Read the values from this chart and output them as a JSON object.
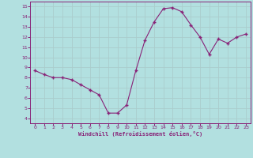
{
  "x": [
    0,
    1,
    2,
    3,
    4,
    5,
    6,
    7,
    8,
    9,
    10,
    11,
    12,
    13,
    14,
    15,
    16,
    17,
    18,
    19,
    20,
    21,
    22,
    23
  ],
  "y": [
    8.7,
    8.3,
    8.0,
    8.0,
    7.8,
    7.3,
    6.8,
    6.3,
    4.5,
    4.5,
    5.3,
    8.7,
    11.7,
    13.5,
    14.8,
    14.9,
    14.5,
    13.2,
    12.0,
    10.3,
    11.8,
    11.4,
    12.0,
    12.3
  ],
  "line_color": "#882277",
  "marker_color": "#882277",
  "bg_color": "#b2e0e0",
  "grid_color": "#aacccc",
  "xlabel": "Windchill (Refroidissement éolien,°C)",
  "xlabel_color": "#882277",
  "tick_color": "#882277",
  "spine_color": "#882277",
  "ylim": [
    3.5,
    15.5
  ],
  "xlim": [
    -0.5,
    23.5
  ],
  "yticks": [
    4,
    5,
    6,
    7,
    8,
    9,
    10,
    11,
    12,
    13,
    14,
    15
  ],
  "xticks": [
    0,
    1,
    2,
    3,
    4,
    5,
    6,
    7,
    8,
    9,
    10,
    11,
    12,
    13,
    14,
    15,
    16,
    17,
    18,
    19,
    20,
    21,
    22,
    23
  ]
}
